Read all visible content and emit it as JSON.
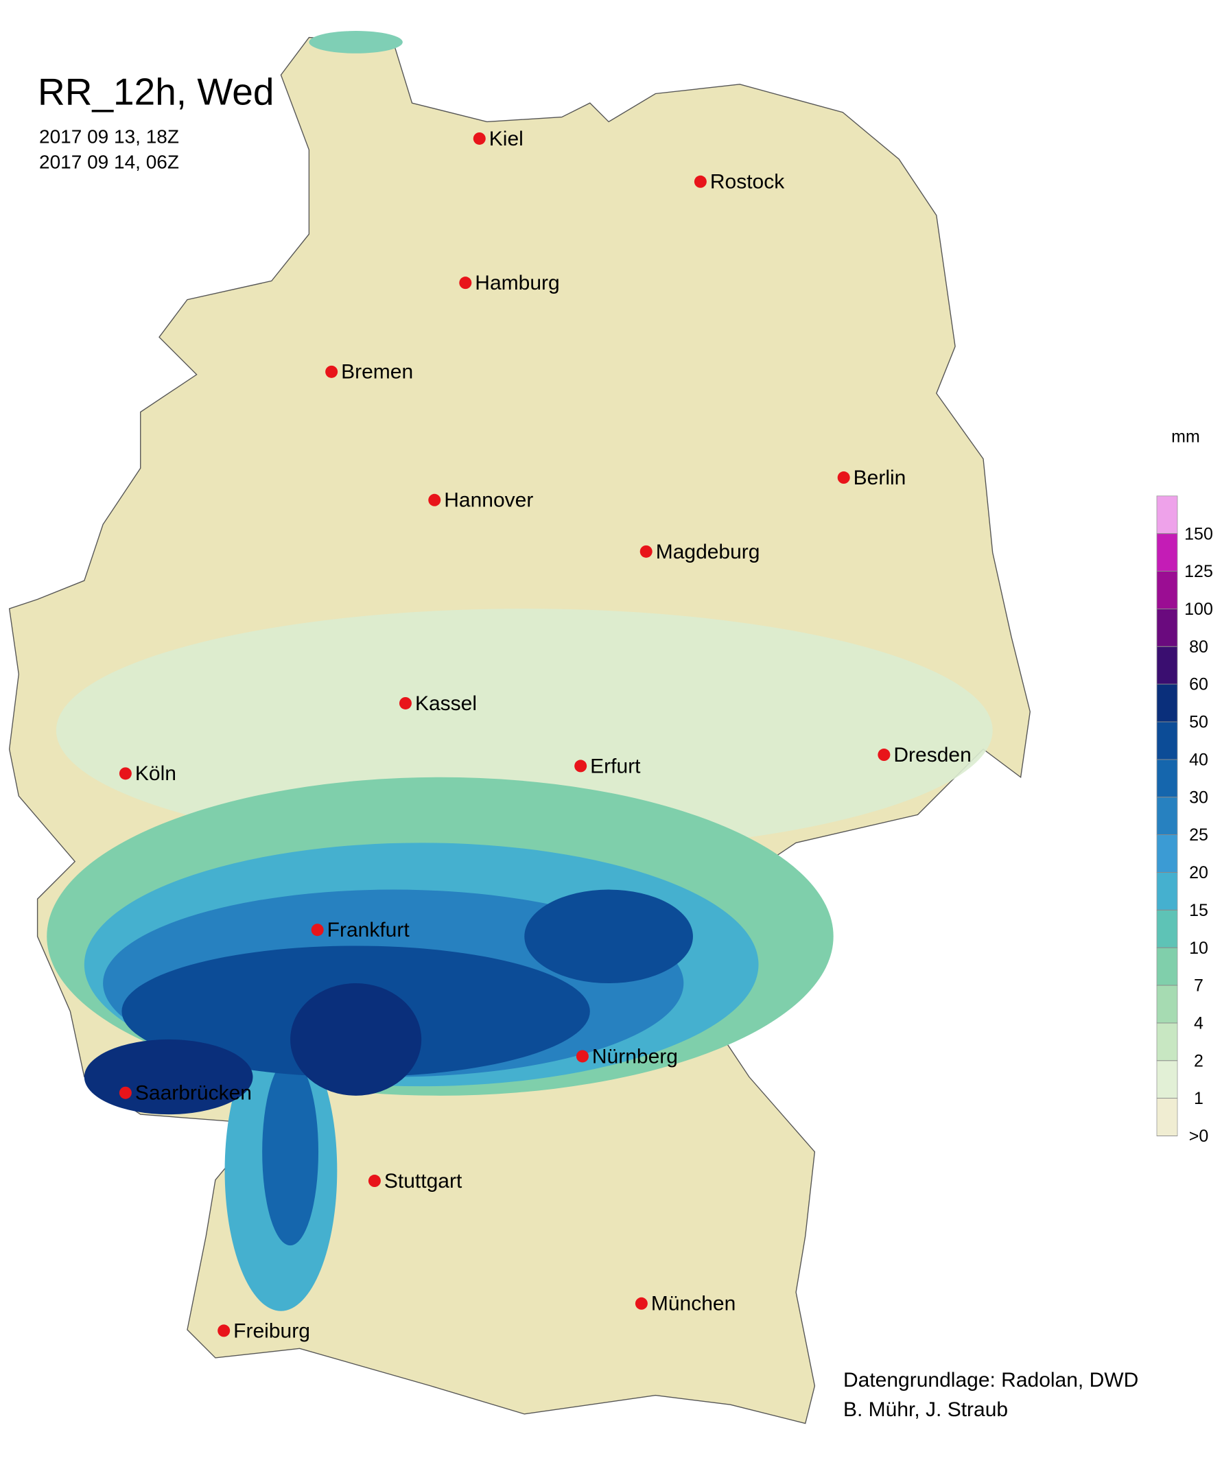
{
  "header": {
    "title": "RR_12h, Wed",
    "start": "2017 09 13, 18Z",
    "end": "2017 09 14, 06Z"
  },
  "cities": [
    {
      "label": "Kiel"
    },
    {
      "label": "Rostock"
    },
    {
      "label": "Hamburg"
    },
    {
      "label": "Bremen"
    },
    {
      "label": "Berlin"
    },
    {
      "label": "Hannover"
    },
    {
      "label": "Magdeburg"
    },
    {
      "label": "Kassel"
    },
    {
      "label": "Köln"
    },
    {
      "label": "Erfurt"
    },
    {
      "label": "Dresden"
    },
    {
      "label": "Frankfurt"
    },
    {
      "label": "Nürnberg"
    },
    {
      "label": "Saarbrücken"
    },
    {
      "label": "Stuttgart"
    },
    {
      "label": "München"
    },
    {
      "label": "Freiburg"
    }
  ],
  "legend": {
    "unit": "mm",
    "levels": [
      {
        "value": 0,
        "label": ">0"
      },
      1,
      2,
      4,
      7,
      10,
      15,
      20,
      25,
      30,
      40,
      50,
      60,
      80,
      100,
      125,
      150
    ],
    "colors": [
      "#f0edd2",
      "#e2f0d6",
      "#c8e7c2",
      "#a6dbb2",
      "#80cfab",
      "#5ec3b6",
      "#45b0cf",
      "#3b9bd4",
      "#2781c0",
      "#1566ad",
      "#0c4c97",
      "#0a2f7b",
      "#3a0e70",
      "#6a0a7e",
      "#9b0d93",
      "#c41cb6",
      "#eea2ea"
    ]
  },
  "credits": [
    "Datengrundlage: Radolan, DWD",
    "B. Mühr, J. Straub"
  ]
}
